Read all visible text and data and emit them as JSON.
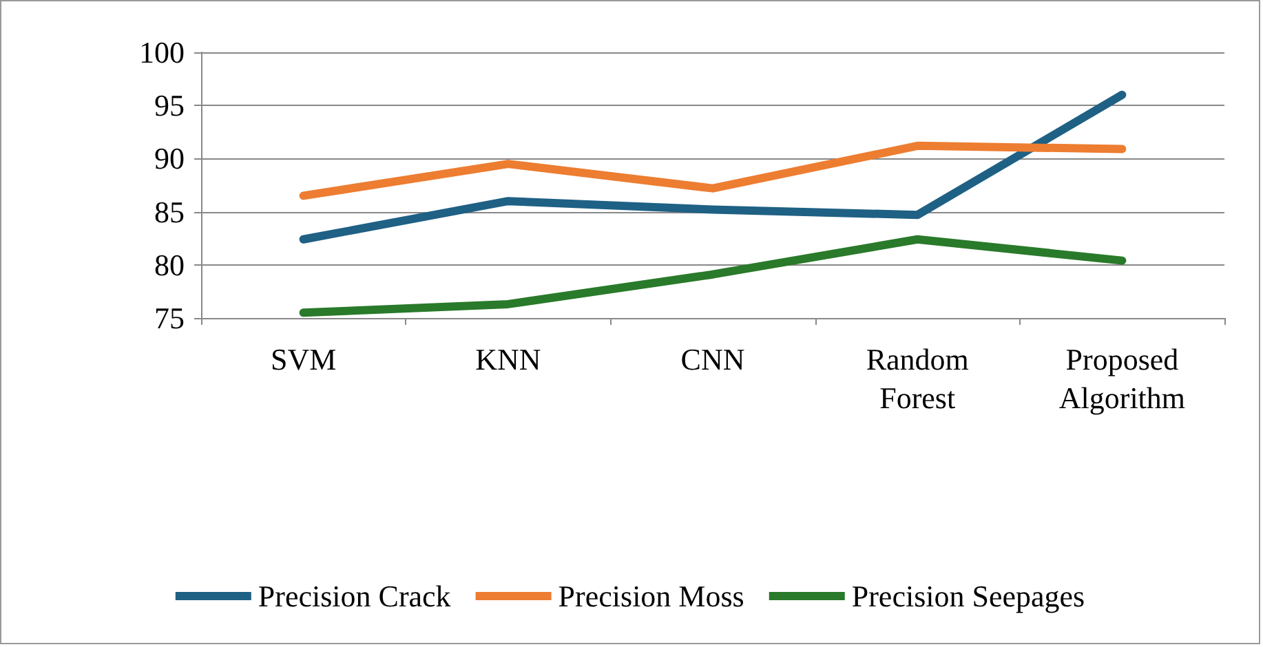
{
  "chart_data": {
    "type": "line",
    "categories": [
      "SVM",
      "KNN",
      "CNN",
      "Random\nForest",
      "Proposed\nAlgorithm"
    ],
    "series": [
      {
        "name": "Precision Crack",
        "color": "#1f6085",
        "values": [
          82.4,
          86.0,
          85.2,
          84.7,
          96.0
        ]
      },
      {
        "name": "Precision Moss",
        "color": "#ed7d31",
        "values": [
          86.5,
          89.5,
          87.2,
          91.2,
          90.9
        ]
      },
      {
        "name": "Precision Seepages",
        "color": "#297a2a",
        "values": [
          75.5,
          76.3,
          79.1,
          82.4,
          80.4
        ]
      }
    ],
    "ylim": [
      75,
      100
    ],
    "yticks": [
      75,
      80,
      85,
      90,
      95,
      100
    ],
    "grid": "y",
    "legend": "bottom",
    "marker": "none",
    "line_style": "solid"
  }
}
